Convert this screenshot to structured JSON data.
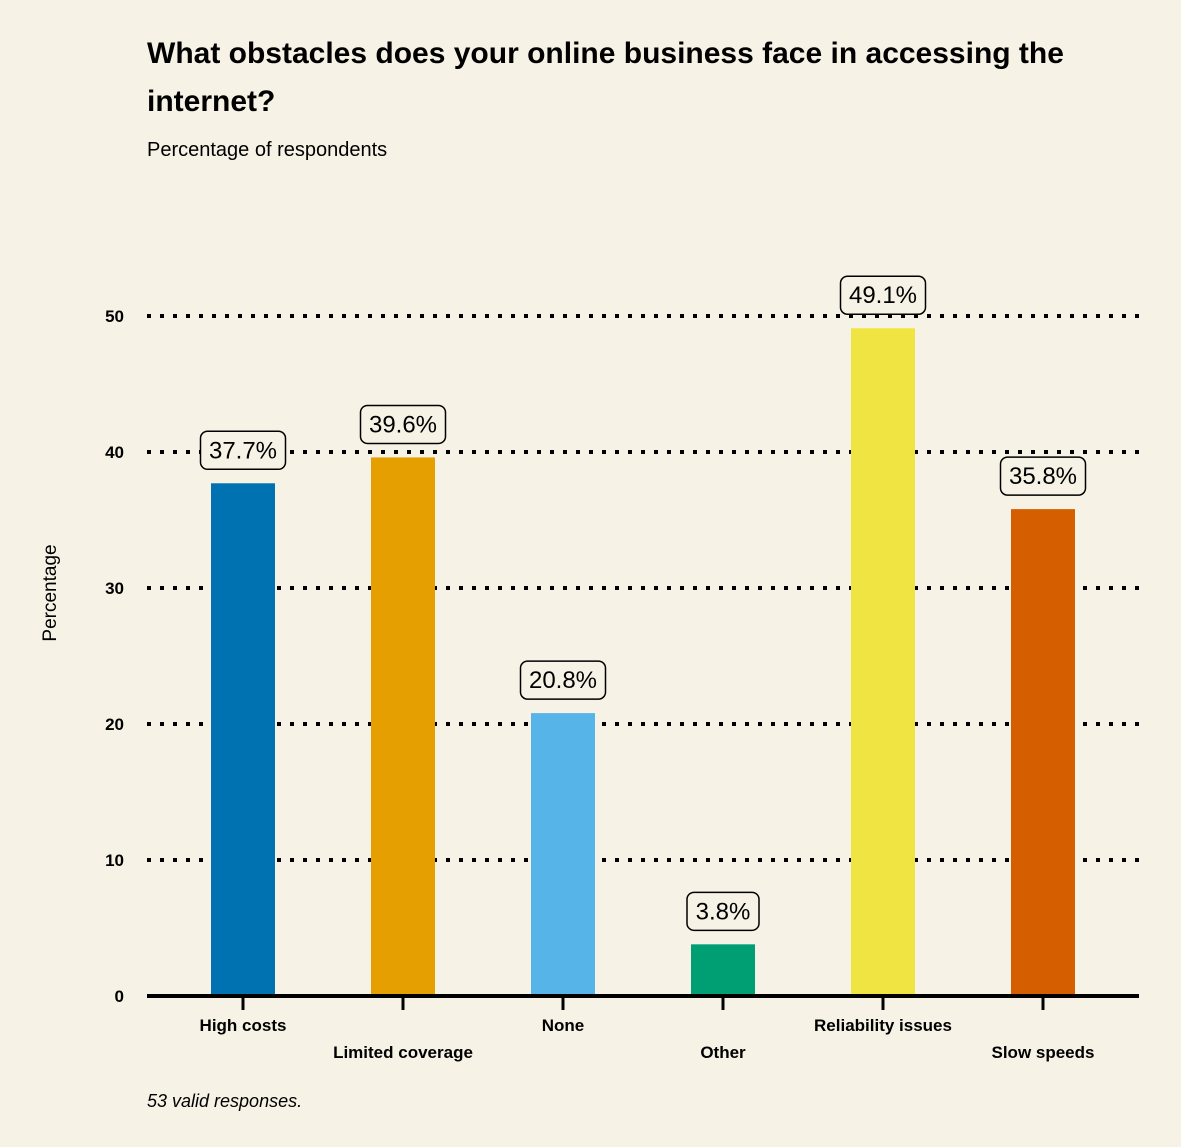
{
  "chart_data": {
    "type": "bar",
    "title": "What obstacles does your online business face in accessing the internet?",
    "subtitle": "Percentage of respondents",
    "xlabel": "",
    "ylabel": "Percentage",
    "ylim": [
      0,
      50
    ],
    "yticks": [
      "0",
      "10",
      "20",
      "30",
      "40",
      "50"
    ],
    "ytick_values": [
      0,
      10,
      20,
      30,
      40,
      50
    ],
    "grid": true,
    "categories": [
      "High costs",
      "Limited coverage",
      "None",
      "Other",
      "Reliability issues",
      "Slow speeds"
    ],
    "values": [
      37.7,
      39.6,
      20.8,
      3.8,
      49.1,
      35.8
    ],
    "data_labels": [
      "37.7%",
      "39.6%",
      "20.8%",
      "3.8%",
      "49.1%",
      "35.8%"
    ],
    "colors": [
      "#0072b2",
      "#e69f00",
      "#56b4e9",
      "#009e73",
      "#f0e442",
      "#d55e00"
    ],
    "footnote": "53 valid responses."
  }
}
